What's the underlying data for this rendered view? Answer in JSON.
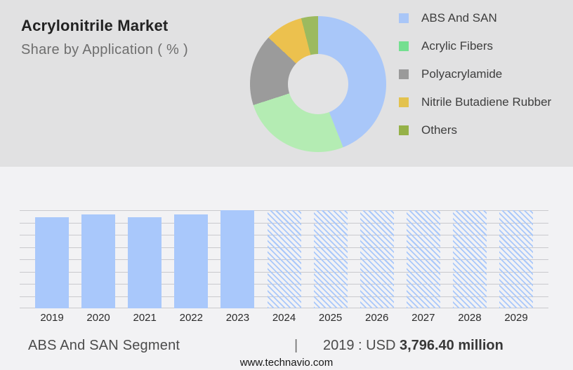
{
  "header": {
    "title": "Acrylonitrile Market",
    "subtitle": "Share by Application ( % )"
  },
  "chart_data": [
    {
      "type": "pie",
      "subtype": "donut",
      "title": "Share by Application ( % )",
      "unit": "%",
      "legend_position": "right",
      "segments": [
        {
          "label": "ABS And SAN",
          "value": 44,
          "color": "#a9c7f9",
          "legend_color": "#a9c6f7"
        },
        {
          "label": "Acrylic Fibers",
          "value": 26,
          "color": "#b4ecb3",
          "legend_color": "#74df90"
        },
        {
          "label": "Polyacrylamide",
          "value": 17,
          "color": "#9b9b9b",
          "legend_color": "#9a9a9a"
        },
        {
          "label": "Nitrile Butadiene Rubber",
          "value": 9,
          "color": "#ecc14e",
          "legend_color": "#e3c24e"
        },
        {
          "label": "Others",
          "value": 4,
          "color": "#9cba5f",
          "legend_color": "#95b148"
        }
      ]
    },
    {
      "type": "bar",
      "categories": [
        "2019",
        "2020",
        "2021",
        "2022",
        "2023",
        "2024",
        "2025",
        "2026",
        "2027",
        "2028",
        "2029"
      ],
      "series": [
        {
          "name": "ABS And SAN Segment",
          "relative_heights": [
            0.93,
            0.96,
            0.93,
            0.96,
            1,
            1,
            1,
            1,
            1,
            1,
            1
          ]
        }
      ],
      "bar_styles": [
        "solid",
        "solid",
        "solid",
        "solid",
        "solid",
        "hatched",
        "hatched",
        "hatched",
        "hatched",
        "hatched",
        "hatched"
      ],
      "bar_color": "#a9c8fb",
      "gridline_count": 9,
      "y_axis_labels_visible": false,
      "xlabel": "",
      "ylabel": ""
    }
  ],
  "footer": {
    "segment_label": "ABS And SAN Segment",
    "separator": "|",
    "value_prefix": "2019 : USD",
    "value_bold": "3,796.40 million",
    "website": "www.technavio.com"
  },
  "colors": {
    "top_band_bg": "#e1e1e2",
    "bottom_band_bg": "#f2f2f4",
    "gridline": "#c9c9cd",
    "bar_blue": "#a9c8fb",
    "title_text": "#222222",
    "subtitle_text": "#6e6e6e",
    "legend_text": "#3e3e3e",
    "footer_text": "#4b4b4b"
  }
}
